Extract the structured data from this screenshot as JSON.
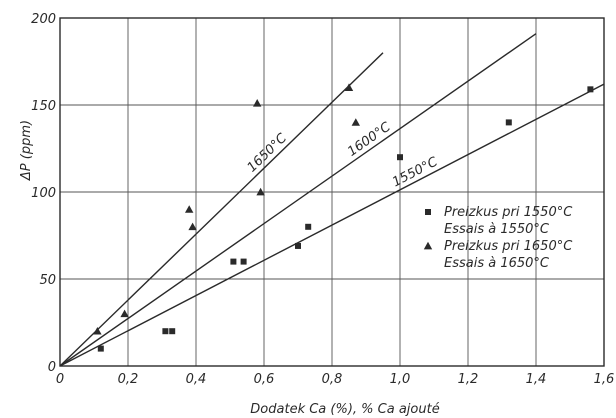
{
  "chart_data": {
    "type": "scatter",
    "xlabel": "Dodatek Ca (%), % Ca ajouté",
    "ylabel": "ΔP (ppm)",
    "xlim": [
      0,
      1.6
    ],
    "ylim": [
      0,
      200
    ],
    "x_ticks": [
      0,
      0.2,
      0.4,
      0.6,
      0.8,
      1.0,
      1.2,
      1.4,
      1.6
    ],
    "x_tick_labels": [
      "0",
      "0,2",
      "0,4",
      "0,6",
      "0,8",
      "1,0",
      "1,2",
      "1,4",
      "1,6"
    ],
    "y_ticks": [
      0,
      50,
      100,
      150,
      200
    ],
    "y_tick_labels": [
      "0",
      "50",
      "100",
      "150",
      "200"
    ],
    "grid": true,
    "legend_position": "right",
    "colors": {
      "ink": "#2a2a2a",
      "grid": "#555555"
    },
    "series": [
      {
        "marker": "square",
        "legend_lines": [
          "Preizkus pri 1550°C",
          "Essais à 1550°C"
        ],
        "points": [
          [
            0.12,
            10
          ],
          [
            0.31,
            20
          ],
          [
            0.33,
            20
          ],
          [
            0.51,
            60
          ],
          [
            0.54,
            60
          ],
          [
            0.7,
            69
          ],
          [
            0.73,
            80
          ],
          [
            1.0,
            120
          ],
          [
            1.32,
            140
          ],
          [
            1.56,
            159
          ]
        ]
      },
      {
        "marker": "triangle",
        "legend_lines": [
          "Preizkus pri 1650°C",
          "Essais à 1650°C"
        ],
        "points": [
          [
            0.11,
            20
          ],
          [
            0.19,
            30
          ],
          [
            0.38,
            90
          ],
          [
            0.39,
            80
          ],
          [
            0.58,
            151
          ],
          [
            0.59,
            100
          ],
          [
            0.85,
            160
          ],
          [
            0.87,
            140
          ]
        ]
      }
    ],
    "fit_lines": [
      {
        "label": "1650°C",
        "x": [
          0,
          0.95
        ],
        "y": [
          0,
          180
        ]
      },
      {
        "label": "1600°C",
        "x": [
          0,
          1.4
        ],
        "y": [
          0,
          191
        ]
      },
      {
        "label": "1550°C",
        "x": [
          0,
          1.6
        ],
        "y": [
          0,
          162
        ]
      }
    ]
  }
}
